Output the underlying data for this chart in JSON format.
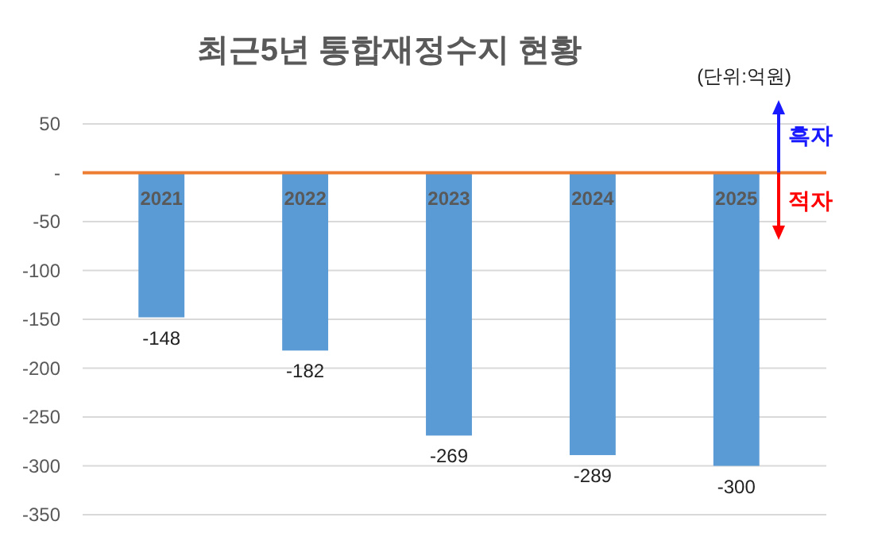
{
  "chart_data": {
    "type": "bar",
    "title": "최근5년 통합재정수지 현황",
    "categories": [
      "2021",
      "2022",
      "2023",
      "2024",
      "2025"
    ],
    "values": [
      -148,
      -182,
      -269,
      -289,
      -300
    ],
    "color": "#5b9bd5",
    "ylim": [
      -350,
      50
    ],
    "yticks": [
      50,
      {
        "value": 0,
        "label": "-"
      },
      -50,
      -100,
      -150,
      -200,
      -250,
      -300,
      -350
    ],
    "grid": "y",
    "data_labels": true,
    "annotations": [
      "(단위:억원)",
      "흑자",
      "적자"
    ]
  }
}
